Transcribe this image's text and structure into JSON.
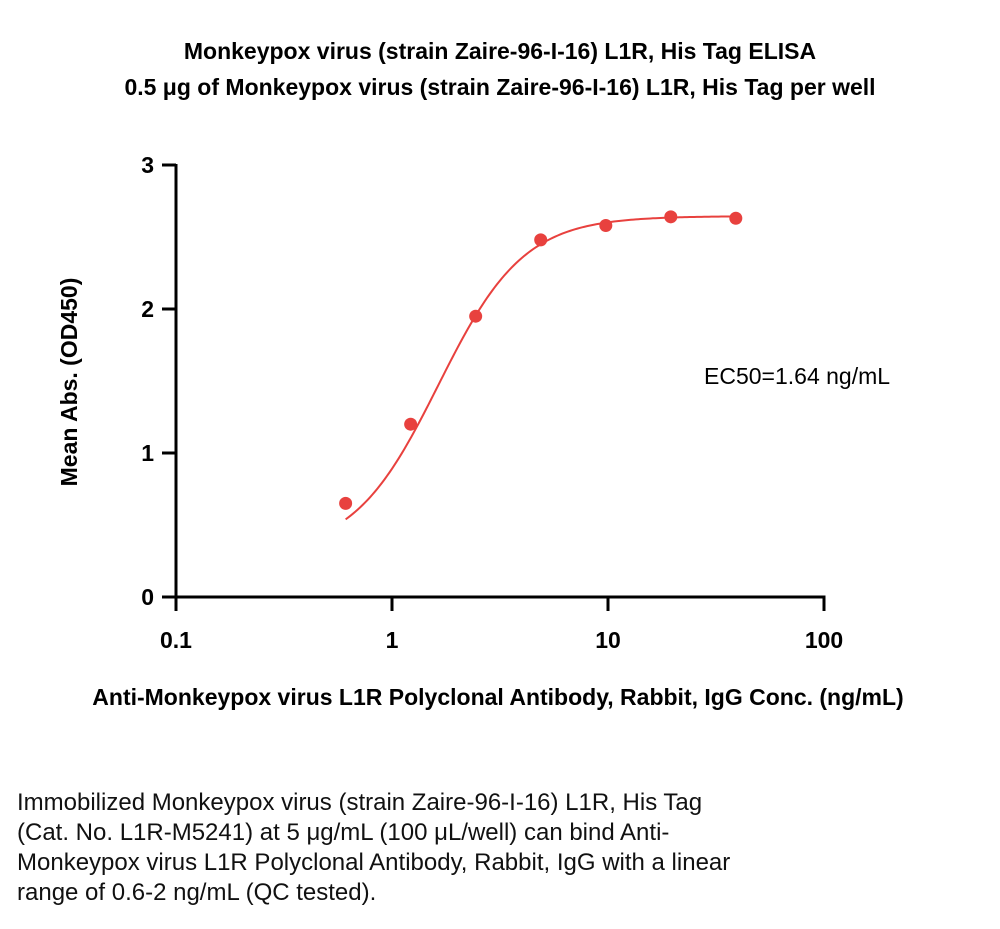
{
  "chart_data": {
    "type": "scatter",
    "title": "Monkeypox virus (strain Zaire-96-I-16) L1R, His Tag ELISA",
    "subtitle": "0.5 μg of Monkeypox virus (strain Zaire-96-I-16) L1R, His Tag per well",
    "xlabel": "Anti-Monkeypox virus L1R Polyclonal Antibody, Rabbit, IgG Conc. (ng/mL)",
    "ylabel": "Mean Abs. (OD450)",
    "xscale": "log",
    "xlim": [
      0.1,
      100
    ],
    "ylim": [
      0,
      3
    ],
    "x_ticks": [
      0.1,
      1,
      10,
      100
    ],
    "x_tick_labels": [
      "0.1",
      "1",
      "10",
      "100"
    ],
    "y_ticks": [
      0,
      1,
      2,
      3
    ],
    "y_tick_labels": [
      "0",
      "1",
      "2",
      "3"
    ],
    "grid": false,
    "legend": "none",
    "series": [
      {
        "color": "#e8413e",
        "x": [
          0.61,
          1.22,
          2.44,
          4.88,
          9.77,
          19.53,
          39.06
        ],
        "y": [
          0.65,
          1.2,
          1.95,
          2.48,
          2.58,
          2.64,
          2.63
        ],
        "fit": {
          "type": "4PL",
          "bottom": 0.3,
          "top": 2.645,
          "ec50": 1.64,
          "hill": 2.2
        }
      }
    ],
    "annotation": "EC50=1.64 ng/mL"
  },
  "caption_lines": [
    "Immobilized Monkeypox virus (strain Zaire-96-I-16) L1R, His Tag",
    "(Cat. No. L1R-M5241) at 5 μg/mL (100 μL/well) can bind Anti-",
    "Monkeypox virus L1R Polyclonal Antibody, Rabbit, IgG with a linear",
    "range of 0.6-2 ng/mL (QC tested)."
  ]
}
